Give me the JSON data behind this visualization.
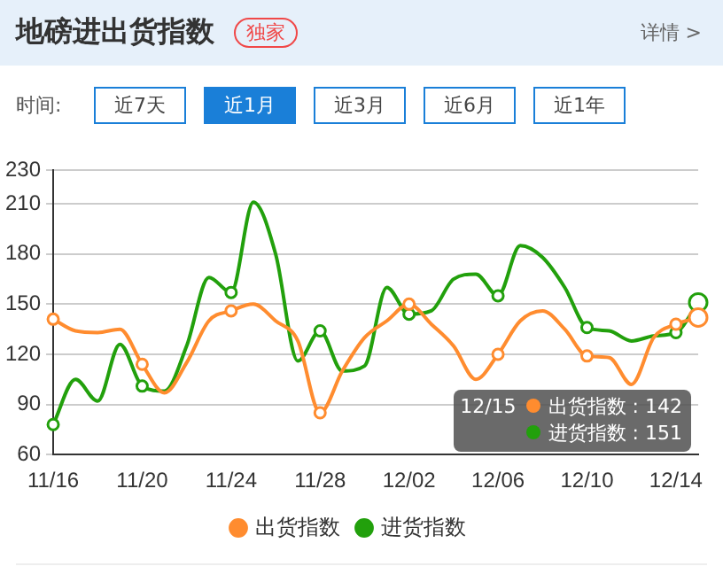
{
  "chart_data": {
    "type": "line",
    "title": "地磅进出货指数",
    "annotations": [
      "独家",
      "详情 >",
      "时间:",
      "近7天",
      "近1月",
      "近3月",
      "近6月",
      "近1年",
      "12/15",
      "出货指数 : 142",
      "进货指数 : 151"
    ],
    "categories": [
      "11/16",
      null,
      null,
      null,
      "11/20",
      null,
      null,
      null,
      "11/24",
      null,
      null,
      null,
      "11/28",
      null,
      null,
      null,
      "12/02",
      null,
      null,
      null,
      "12/06",
      null,
      null,
      null,
      "12/10",
      null,
      null,
      null,
      "12/14",
      null
    ],
    "series": [
      {
        "name": "出货指数",
        "color": "#ff8c2f",
        "values": [
          141,
          134,
          133,
          135,
          114,
          97,
          115,
          140,
          146,
          150,
          140,
          128,
          85,
          110,
          130,
          140,
          150,
          138,
          125,
          105,
          120,
          140,
          146,
          135,
          119,
          118,
          102,
          130,
          138,
          142
        ]
      },
      {
        "name": "进货指数",
        "color": "#22a00c",
        "values": [
          78,
          105,
          92,
          126,
          101,
          98,
          125,
          166,
          157,
          211,
          180,
          116,
          134,
          110,
          113,
          160,
          144,
          146,
          165,
          168,
          155,
          185,
          178,
          160,
          136,
          134,
          128,
          131,
          133,
          151
        ]
      }
    ],
    "ylim": [
      60,
      230
    ],
    "yticks": [
      60,
      90,
      120,
      150,
      180,
      210,
      230
    ],
    "grid": "y",
    "legend": "bottom"
  }
}
